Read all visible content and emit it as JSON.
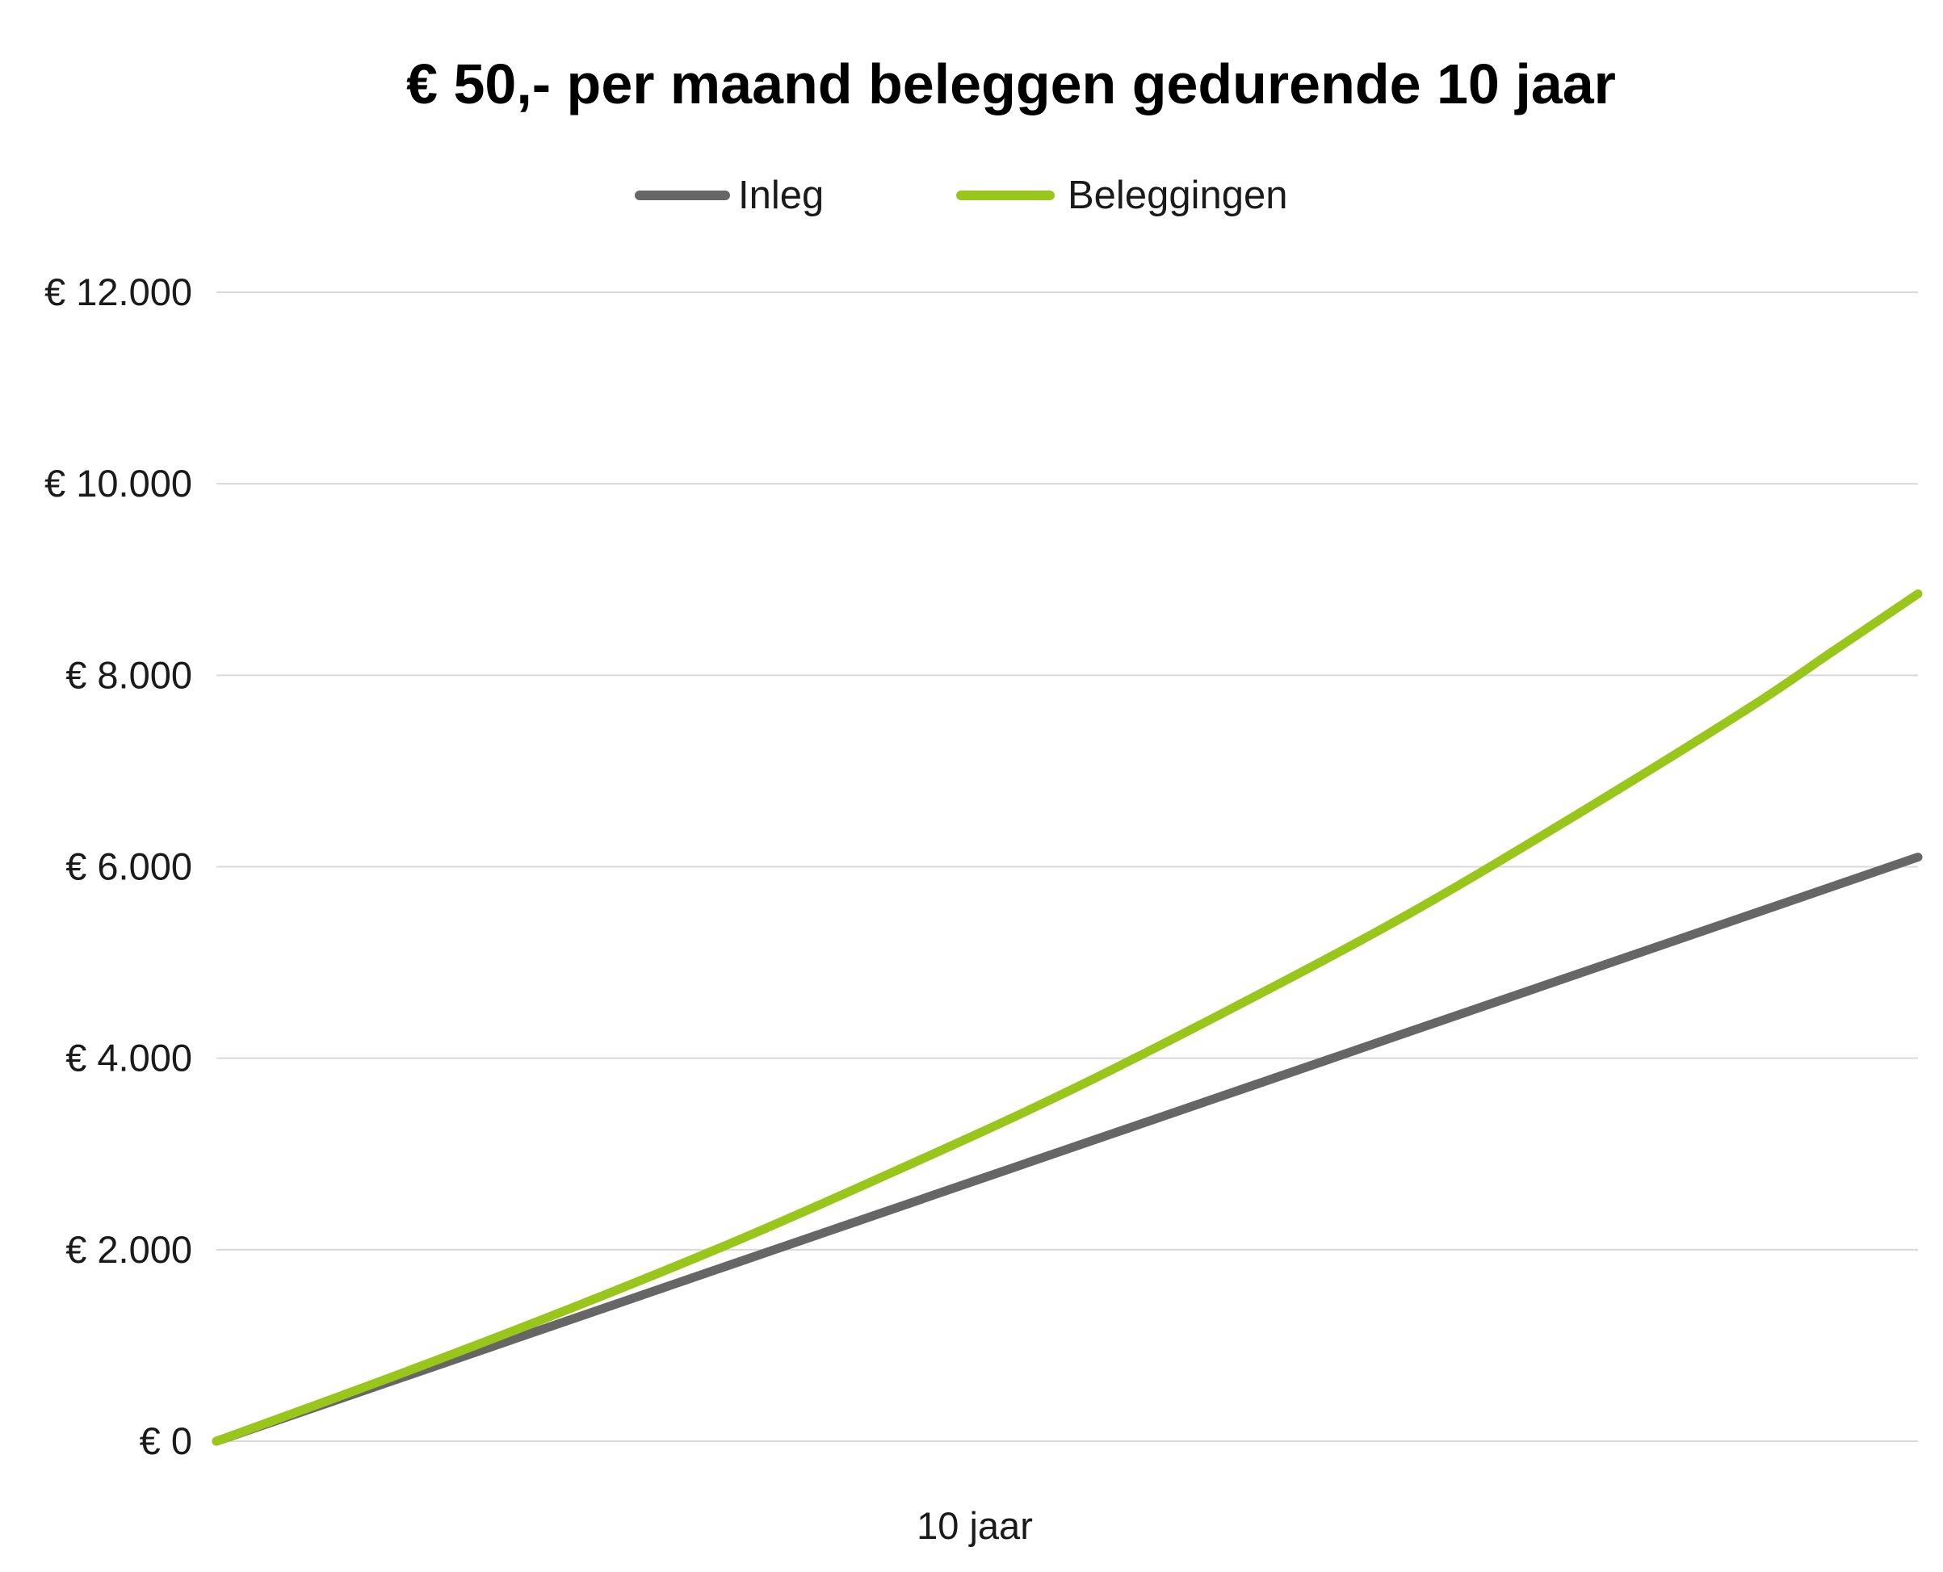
{
  "chart_data": {
    "type": "line",
    "title": "€ 50,- per maand beleggen gedurende 10 jaar",
    "xlabel": "10 jaar",
    "ylabel": "",
    "y_ticks": [
      "€ 0",
      "€ 2.000",
      "€ 4.000",
      "€ 6.000",
      "€ 8.000",
      "€ 10.000",
      "€ 12.000"
    ],
    "ylim": [
      0,
      12000
    ],
    "xlim": [
      0,
      120
    ],
    "x_unit": "months",
    "grid": true,
    "legend_position": "top-center",
    "series": [
      {
        "name": "Inleg",
        "color": "#666666",
        "x": [
          0,
          12,
          24,
          36,
          48,
          60,
          72,
          84,
          96,
          108,
          120
        ],
        "values": [
          0,
          610,
          1220,
          1830,
          2440,
          3050,
          3660,
          4270,
          4880,
          5490,
          6100
        ]
      },
      {
        "name": "Beleggingen",
        "color": "#99c61a",
        "x": [
          0,
          12,
          24,
          36,
          48,
          60,
          72,
          84,
          96,
          108,
          114,
          120
        ],
        "values": [
          0,
          650,
          1330,
          2050,
          2830,
          3650,
          4550,
          5500,
          6550,
          7650,
          8250,
          8850
        ]
      }
    ]
  }
}
